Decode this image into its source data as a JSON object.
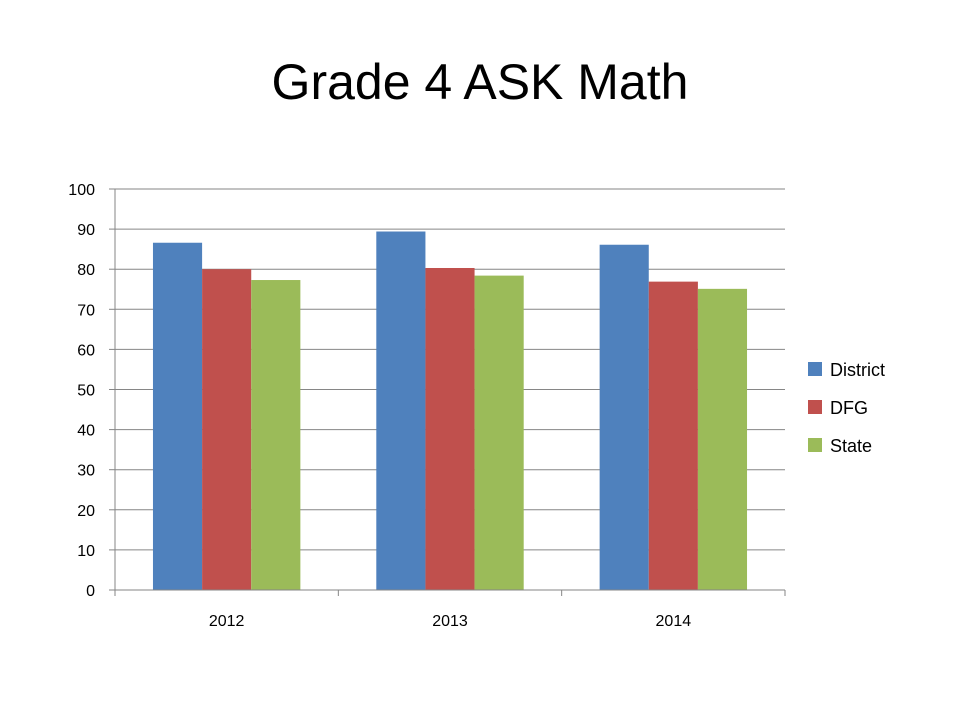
{
  "slide": {
    "title": "Grade 4 ASK Math"
  },
  "chart_data": {
    "type": "bar",
    "title": "Grade 4 ASK Math",
    "xlabel": "",
    "ylabel": "",
    "categories": [
      "2012",
      "2013",
      "2014"
    ],
    "series": [
      {
        "name": "District",
        "color": "#4F81BD",
        "values": [
          86.6,
          89.4,
          86.1
        ]
      },
      {
        "name": "DFG",
        "color": "#C0504D",
        "values": [
          80.0,
          80.3,
          76.9
        ]
      },
      {
        "name": "State",
        "color": "#9BBB59",
        "values": [
          77.3,
          78.4,
          75.1
        ]
      }
    ],
    "ylim": [
      0,
      100
    ],
    "yticks": [
      0,
      10,
      20,
      30,
      40,
      50,
      60,
      70,
      80,
      90,
      100
    ],
    "grid": true,
    "legend": "right"
  }
}
